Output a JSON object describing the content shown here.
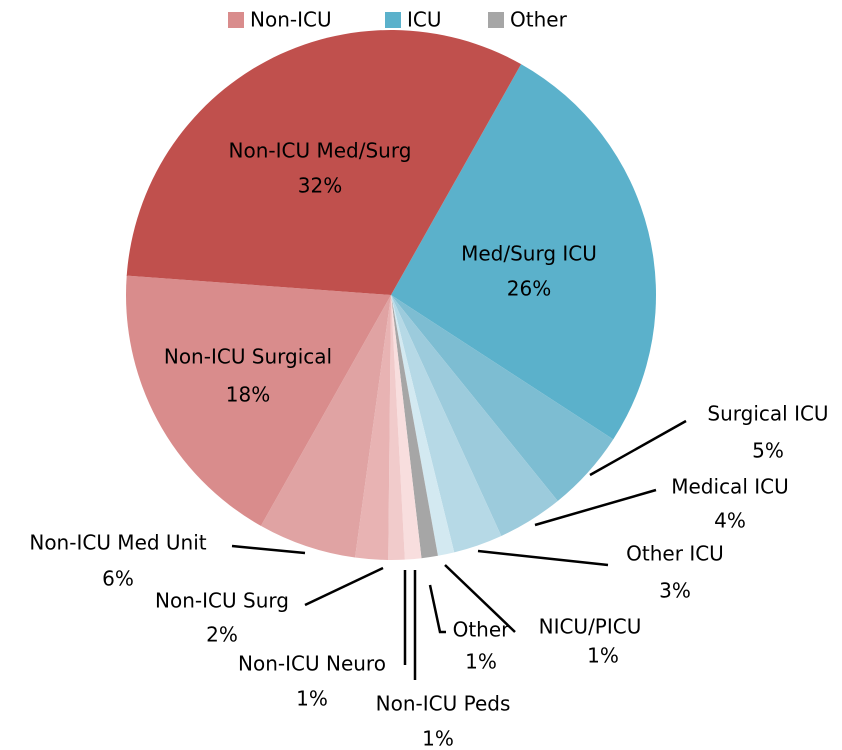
{
  "chart_data": {
    "type": "pie",
    "categories": [
      "Med/Surg ICU",
      "Surgical ICU",
      "Medical ICU",
      "Other ICU",
      "NICU/PICU",
      "Other",
      "Non-ICU Peds",
      "Non-ICU Neuro",
      "Non-ICU Surg",
      "Non-ICU Med Unit",
      "Non-ICU Surgical",
      "Non-ICU Med/Surg"
    ],
    "values": [
      26,
      5,
      4,
      3,
      1,
      1,
      1,
      1,
      2,
      6,
      18,
      32
    ],
    "value_labels": [
      "26%",
      "5%",
      "4%",
      "3%",
      "1%",
      "1%",
      "1%",
      "1%",
      "2%",
      "6%",
      "18%",
      "32%"
    ],
    "colors": [
      "#5bb1cb",
      "#7dbdd2",
      "#9ccbdc",
      "#b6d9e6",
      "#d3e9f1",
      "#a6a6a6",
      "#f8dede",
      "#f1cbcb",
      "#e8b3b3",
      "#e0a3a3",
      "#d98c8c",
      "#c0504d"
    ],
    "legend": [
      {
        "name": "Non-ICU",
        "color": "#d98c8c"
      },
      {
        "name": "ICU",
        "color": "#5bb1cb"
      },
      {
        "name": "Other",
        "color": "#a6a6a6"
      }
    ]
  }
}
